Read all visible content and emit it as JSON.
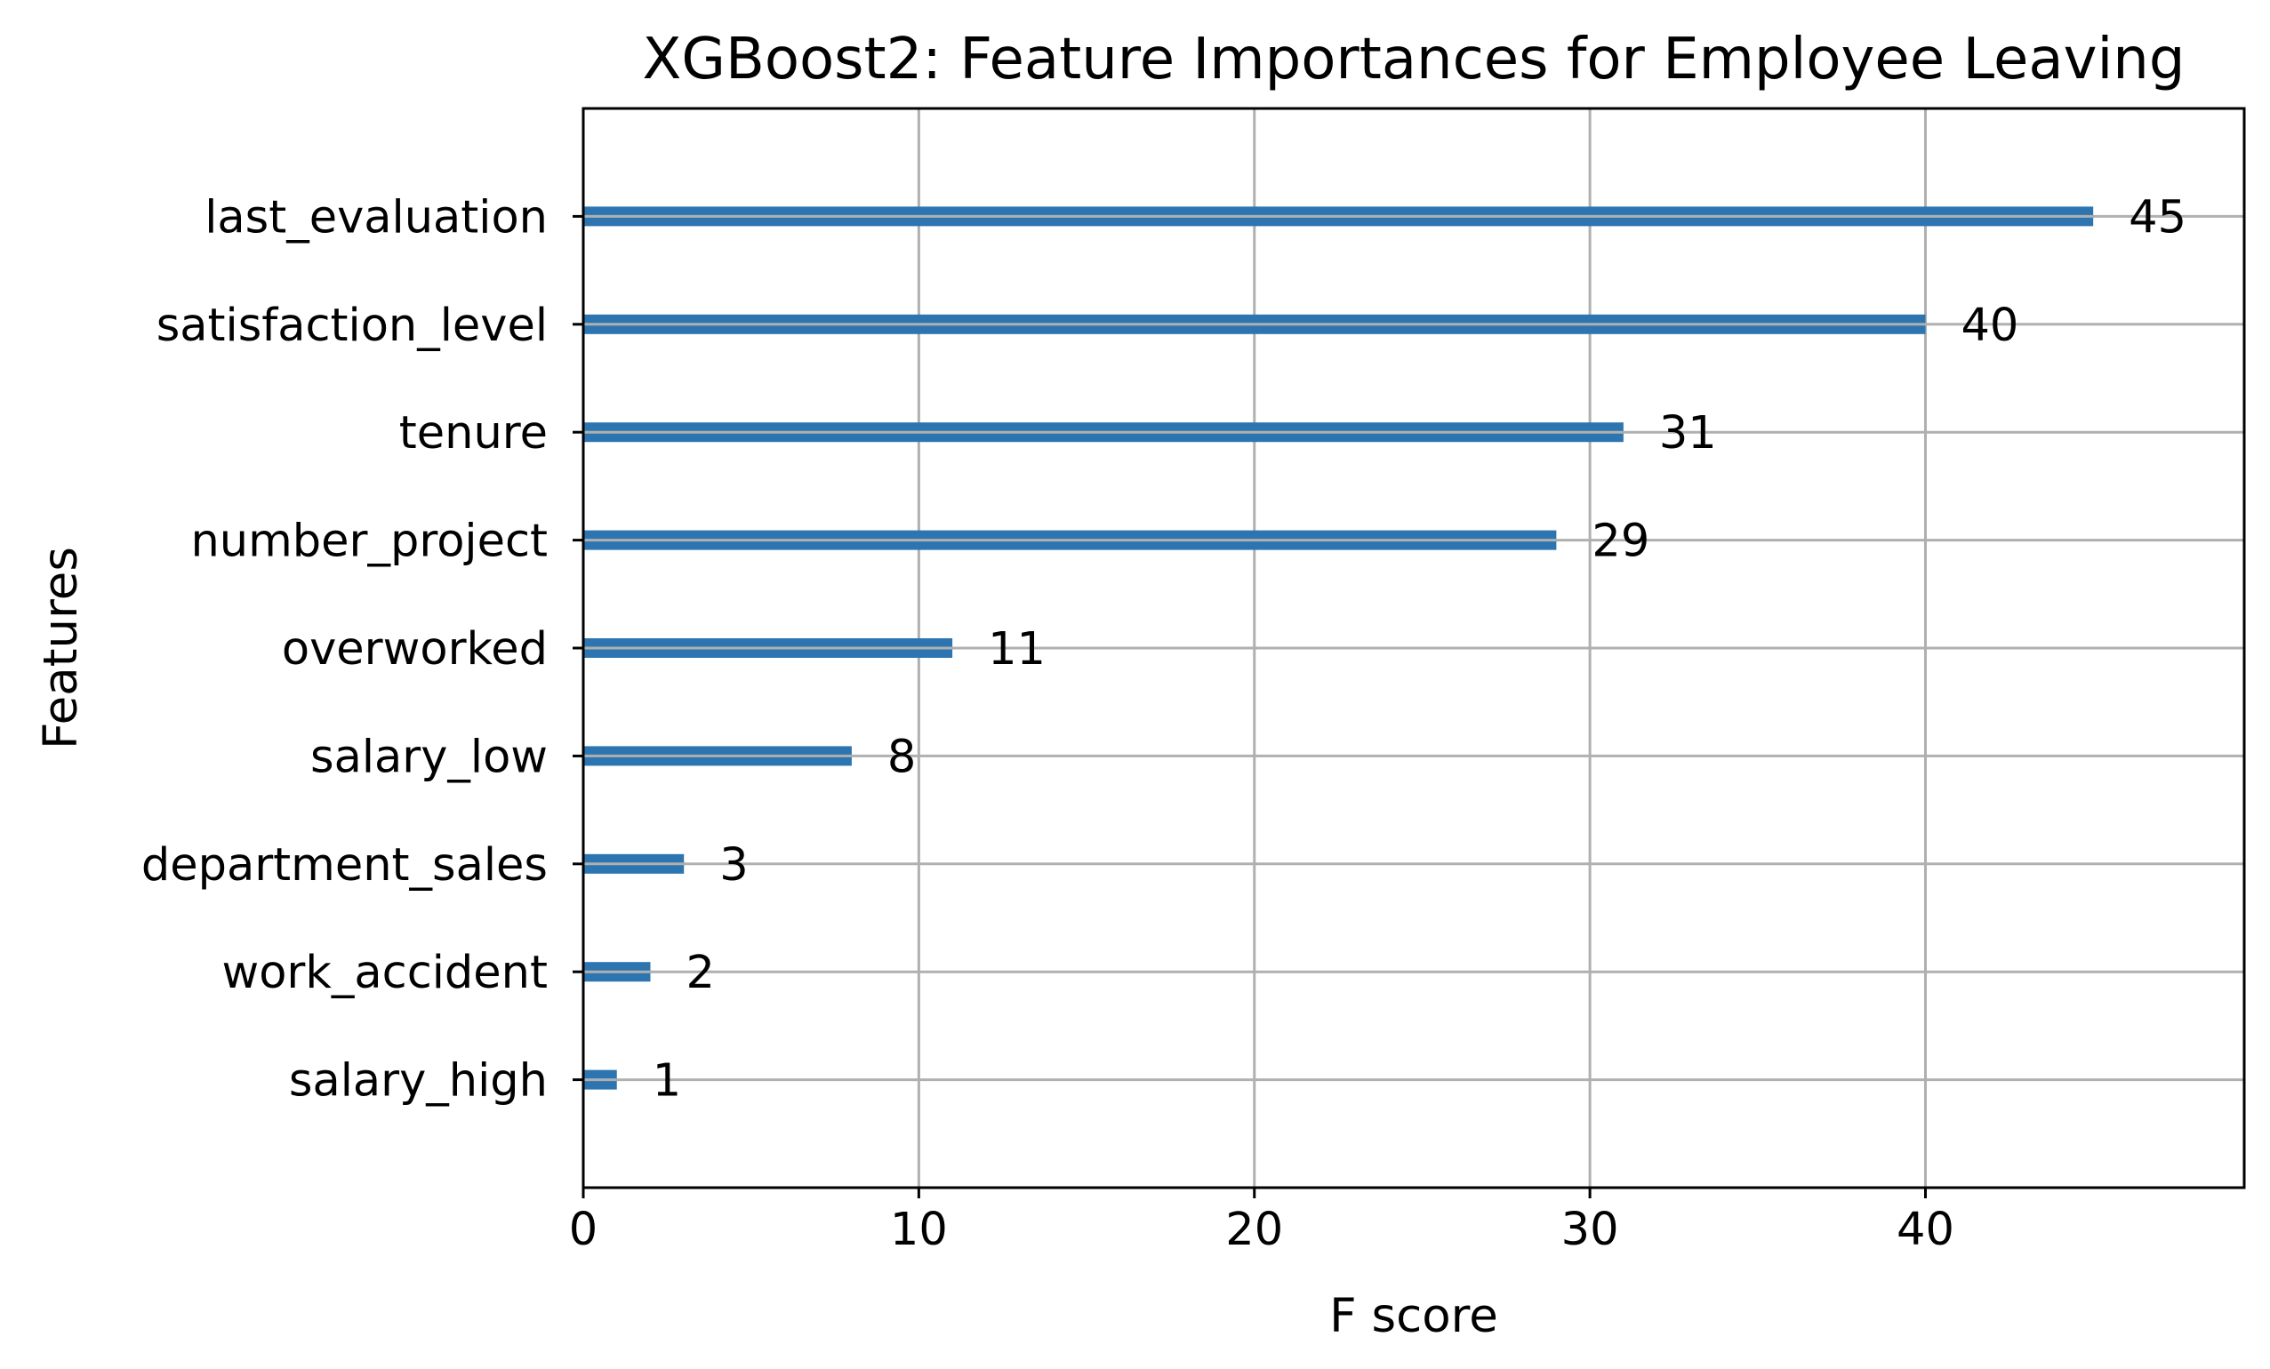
{
  "chart_data": {
    "type": "bar",
    "orientation": "horizontal",
    "title": "XGBoost2: Feature Importances for Employee Leaving",
    "xlabel": "F score",
    "ylabel": "Features",
    "categories": [
      "salary_high",
      "work_accident",
      "department_sales",
      "salary_low",
      "overworked",
      "number_project",
      "tenure",
      "satisfaction_level",
      "last_evaluation"
    ],
    "values": [
      1,
      2,
      3,
      8,
      11,
      29,
      31,
      40,
      45
    ],
    "xlim": [
      0,
      49.5
    ],
    "xticks": [
      0,
      10,
      20,
      30,
      40
    ],
    "grid": true,
    "bar_color": "#2c75b0",
    "grid_color": "#b0b0b0"
  }
}
